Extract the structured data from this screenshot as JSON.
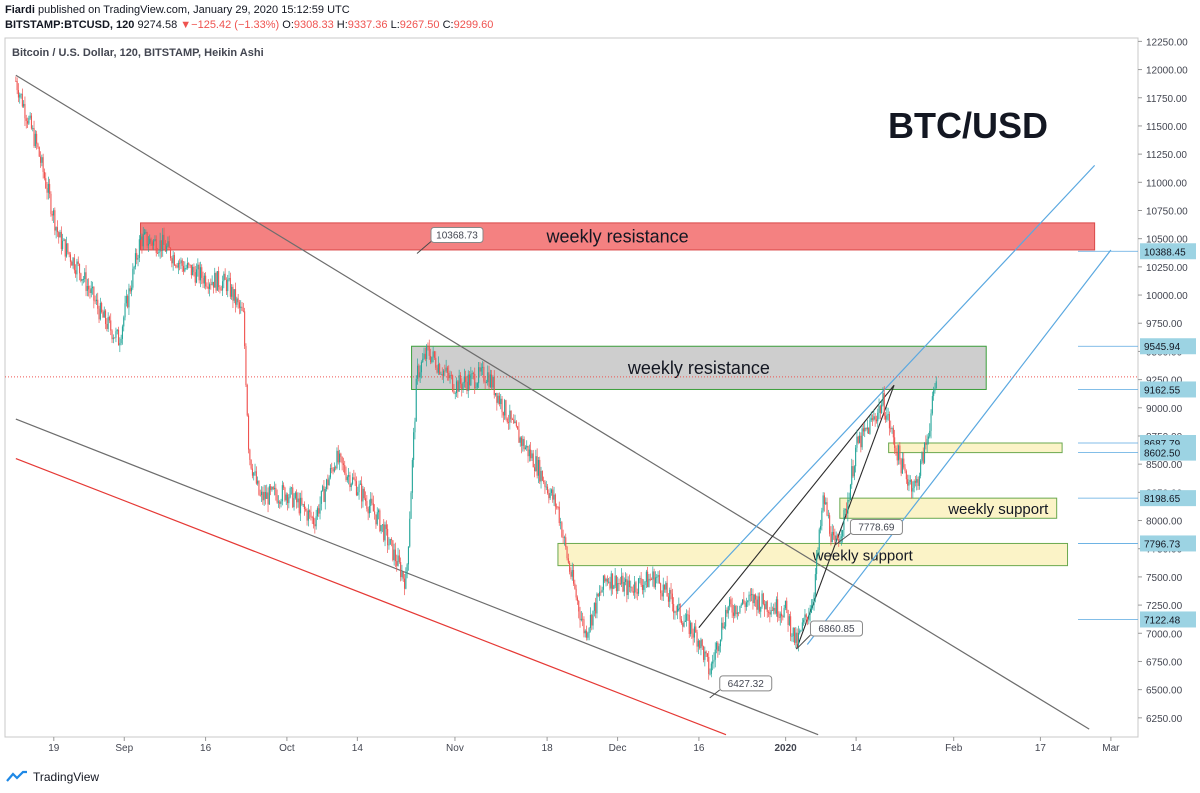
{
  "header": {
    "author": "Fiardi",
    "published_text": "published on TradingView.com, January 29, 2020 15:12:59 UTC",
    "symbol": "BITSTAMP:BTCUSD, 120",
    "last": "9274.58",
    "change": "−125.42 (−1.33%)",
    "open_label": "O:",
    "open": "9308.33",
    "high_label": "H:",
    "high": "9337.36",
    "low_label": "L:",
    "low": "9267.50",
    "close_label": "C:",
    "close": "9299.60"
  },
  "footer": {
    "brand": "TradingView"
  },
  "colors": {
    "up": "#26a69a",
    "down": "#ef5350",
    "resistance_red": "#f26b6b",
    "resistance_grey": "#c9c9c9",
    "support_yellow": "#fbf2c4",
    "trend_blue": "#5aa8e0",
    "trend_grey": "#6d6d6d",
    "trend_red": "#e53935",
    "label_bg": "#9cd3e3"
  },
  "chart_data": {
    "type": "candlestick",
    "title": "Bitcoin / U.S. Dollar, 120, BITSTAMP, Heikin Ashi",
    "watermark": "BTC/USD",
    "xlabel": "",
    "ylabel": "",
    "x_ticks": [
      "19",
      "Sep",
      "16",
      "Oct",
      "14",
      "Nov",
      "18",
      "Dec",
      "16",
      "2020",
      "14",
      "Feb",
      "17",
      "Mar"
    ],
    "y_ticks": [
      6250,
      6500,
      6750,
      7000,
      7250,
      7500,
      7750,
      8000,
      8250,
      8500,
      8750,
      9000,
      9250,
      9500,
      9750,
      10000,
      10250,
      10500,
      10750,
      11000,
      11250,
      11500,
      11750,
      12000,
      12250
    ],
    "ylim": [
      6080,
      12280
    ],
    "price_path": [
      [
        "2019-08-12",
        11900
      ],
      [
        "2019-08-16",
        11300
      ],
      [
        "2019-08-20",
        10500
      ],
      [
        "2019-08-24",
        10200
      ],
      [
        "2019-08-28",
        9800
      ],
      [
        "2019-08-31",
        9600
      ],
      [
        "2019-09-04",
        10500
      ],
      [
        "2019-09-08",
        10450
      ],
      [
        "2019-09-12",
        10250
      ],
      [
        "2019-09-16",
        10150
      ],
      [
        "2019-09-20",
        10100
      ],
      [
        "2019-09-23",
        9800
      ],
      [
        "2019-09-24",
        8600
      ],
      [
        "2019-09-26",
        8200
      ],
      [
        "2019-10-01",
        8250
      ],
      [
        "2019-10-06",
        8000
      ],
      [
        "2019-10-10",
        8550
      ],
      [
        "2019-10-14",
        8300
      ],
      [
        "2019-10-18",
        8000
      ],
      [
        "2019-10-23",
        7450
      ],
      [
        "2019-10-25",
        9300
      ],
      [
        "2019-10-27",
        9500
      ],
      [
        "2019-11-01",
        9200
      ],
      [
        "2019-11-07",
        9300
      ],
      [
        "2019-11-12",
        8800
      ],
      [
        "2019-11-16",
        8500
      ],
      [
        "2019-11-20",
        8100
      ],
      [
        "2019-11-22",
        7600
      ],
      [
        "2019-11-25",
        7000
      ],
      [
        "2019-11-29",
        7500
      ],
      [
        "2019-12-03",
        7400
      ],
      [
        "2019-12-08",
        7500
      ],
      [
        "2019-12-12",
        7200
      ],
      [
        "2019-12-16",
        6950
      ],
      [
        "2019-12-18",
        6650
      ],
      [
        "2019-12-21",
        7200
      ],
      [
        "2019-12-26",
        7300
      ],
      [
        "2020-01-01",
        7200
      ],
      [
        "2020-01-03",
        6900
      ],
      [
        "2020-01-06",
        7300
      ],
      [
        "2020-01-08",
        8200
      ],
      [
        "2020-01-10",
        7750
      ],
      [
        "2020-01-12",
        8050
      ],
      [
        "2020-01-14",
        8650
      ],
      [
        "2020-01-16",
        8800
      ],
      [
        "2020-01-19",
        9050
      ],
      [
        "2020-01-21",
        8700
      ],
      [
        "2020-01-23",
        8400
      ],
      [
        "2020-01-25",
        8300
      ],
      [
        "2020-01-27",
        8700
      ],
      [
        "2020-01-29",
        9300
      ]
    ],
    "zones": [
      {
        "label": "weekly resistance",
        "from": 10400,
        "to": 10640,
        "start": "2019-09-04",
        "end": "2020-02-27",
        "color": "red"
      },
      {
        "label": "weekly resistance",
        "from": 9162.55,
        "to": 9545.94,
        "start": "2019-10-24",
        "end": "2020-02-07",
        "color": "grey"
      },
      {
        "label": "",
        "from": 8602.5,
        "to": 8687.79,
        "start": "2020-01-20",
        "end": "2020-02-21",
        "color": "yellow"
      },
      {
        "label": "weekly support",
        "from": 8020,
        "to": 8198.65,
        "start": "2020-01-11",
        "end": "2020-02-20",
        "color": "yellow"
      },
      {
        "label": "weekly support",
        "from": 7600,
        "to": 7796.73,
        "start": "2019-11-20",
        "end": "2020-02-22",
        "color": "yellow"
      }
    ],
    "price_labels": [
      "10388.45",
      "9545.94",
      "9162.55",
      "8687.79",
      "8602.50",
      "8198.65",
      "7796.73",
      "7122.48"
    ],
    "last_price_label": "9274.58",
    "annotations": [
      {
        "text": "10368.73",
        "x": "2019-10-25",
        "y": 10368.73
      },
      {
        "text": "7778.69",
        "x": "2020-01-10",
        "y": 7778.69
      },
      {
        "text": "6860.85",
        "x": "2020-01-03",
        "y": 6860.85
      },
      {
        "text": "6427.32",
        "x": "2019-12-18",
        "y": 6427.32
      }
    ],
    "trendlines": [
      {
        "color": "grey",
        "from": [
          "2019-08-12",
          11950
        ],
        "to": [
          "2020-02-26",
          6150
        ]
      },
      {
        "color": "grey",
        "from": [
          "2019-08-12",
          8900
        ],
        "to": [
          "2020-01-07",
          6100
        ]
      },
      {
        "color": "red",
        "from": [
          "2019-08-12",
          8550
        ],
        "to": [
          "2019-12-21",
          6100
        ]
      },
      {
        "color": "blue",
        "from": [
          "2019-12-12",
          7200
        ],
        "to": [
          "2020-02-27",
          11150
        ]
      },
      {
        "color": "blue",
        "from": [
          "2020-01-05",
          6900
        ],
        "to": [
          "2020-03-01",
          10400
        ]
      }
    ]
  }
}
